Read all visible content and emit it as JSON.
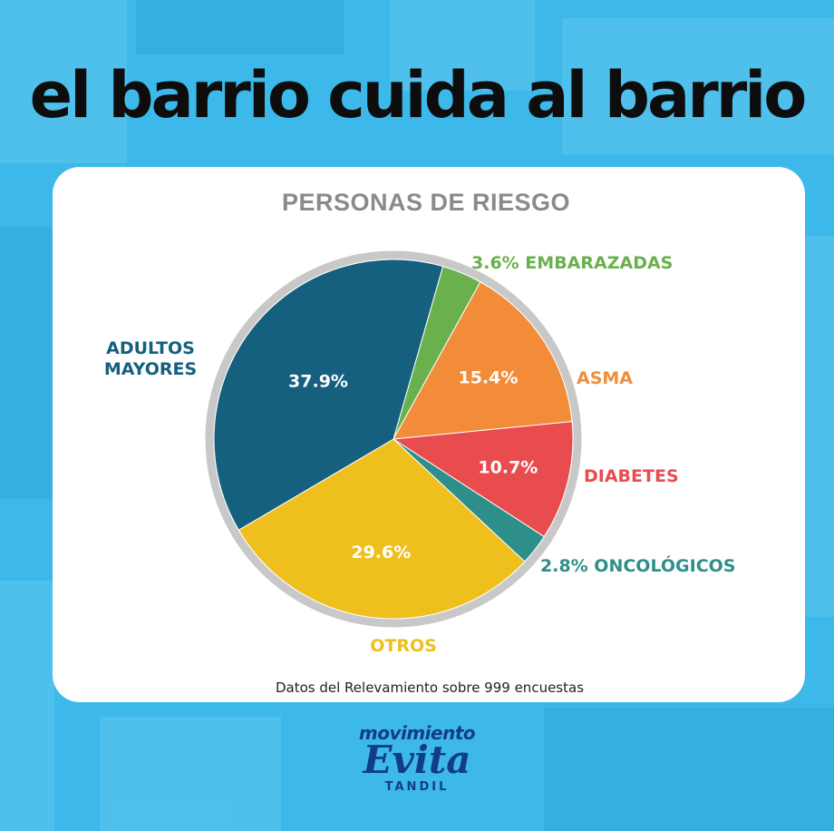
{
  "headline": "el barrio cuida al barrio",
  "footnote": "Datos del Relevamiento sobre 999 encuestas",
  "logo": {
    "top": "movimiento",
    "middle": "Evita",
    "bottom": "TANDIL"
  },
  "colors": {
    "background": "#3cb9ea",
    "card": "#ffffff",
    "title": "#8a8a8a",
    "ring": "#c8c8c8"
  },
  "chart_data": {
    "type": "pie",
    "title": "PERSONAS DE RIESGO",
    "unit": "%",
    "slices": [
      {
        "label": "EMBARAZADAS",
        "value": 3.6,
        "color": "#6ab04c",
        "label_text": "3.6% EMBARAZADAS",
        "inside_text": ""
      },
      {
        "label": "ASMA",
        "value": 15.4,
        "color": "#f28c38",
        "label_text": "ASMA",
        "inside_text": "15.4%"
      },
      {
        "label": "DIABETES",
        "value": 10.7,
        "color": "#e84c4f",
        "label_text": "DIABETES",
        "inside_text": "10.7%"
      },
      {
        "label": "ONCOLÓGICOS",
        "value": 2.8,
        "color": "#2e8f8a",
        "label_text": "2.8% ONCOLÓGICOS",
        "inside_text": ""
      },
      {
        "label": "OTROS",
        "value": 29.6,
        "color": "#efbf1e",
        "label_text": "OTROS",
        "inside_text": "29.6%"
      },
      {
        "label": "ADULTOS MAYORES",
        "value": 37.9,
        "color": "#14607e",
        "label_text": "ADULTOS MAYORES",
        "inside_text": "37.9%"
      }
    ]
  }
}
